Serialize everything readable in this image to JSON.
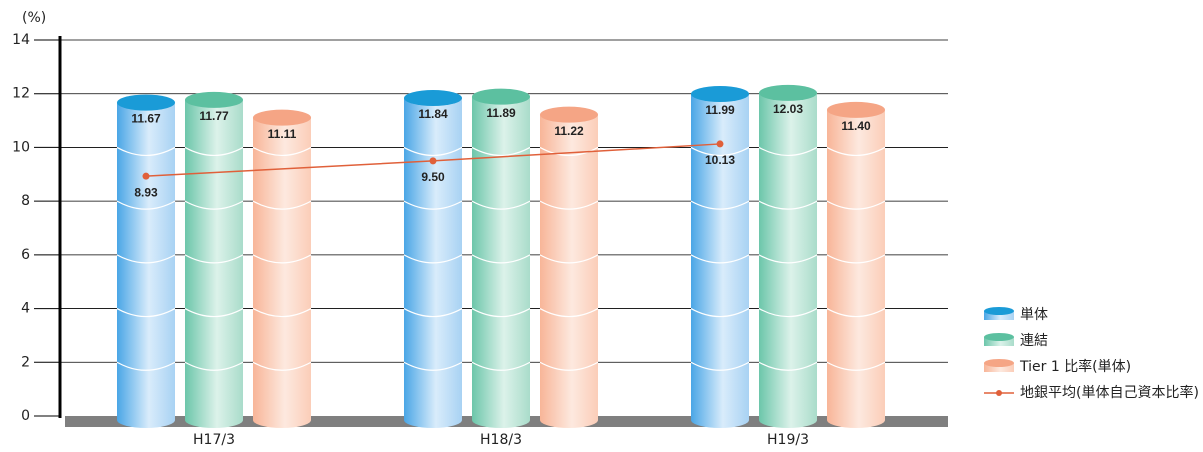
{
  "chart_data": {
    "type": "bar",
    "y_axis_label": "(%)",
    "categories": [
      "H17/3",
      "H18/3",
      "H19/3"
    ],
    "series": [
      {
        "name": "単体",
        "type": "bar",
        "color": "#1a9bd7",
        "values": [
          11.67,
          11.84,
          11.99
        ]
      },
      {
        "name": "連結",
        "type": "bar",
        "color": "#5cc0a0",
        "values": [
          11.77,
          11.89,
          12.03
        ]
      },
      {
        "name": "Tier 1 比率(単体)",
        "type": "bar",
        "color": "#f5a585",
        "values": [
          11.11,
          11.22,
          11.4
        ]
      },
      {
        "name": "地銀平均(単体自己資本比率)",
        "type": "line",
        "color": "#e0603a",
        "values": [
          8.93,
          9.5,
          10.13
        ]
      }
    ],
    "value_labels": [
      [
        "11.67",
        "11.84",
        "11.99"
      ],
      [
        "11.77",
        "11.89",
        "12.03"
      ],
      [
        "11.11",
        "11.22",
        "11.40"
      ],
      [
        "8.93",
        "9.50",
        "10.13"
      ]
    ],
    "ylim": [
      0,
      14
    ],
    "yticks": [
      0,
      2,
      4,
      6,
      8,
      10,
      12,
      14
    ],
    "grid": true,
    "legend": "right"
  }
}
